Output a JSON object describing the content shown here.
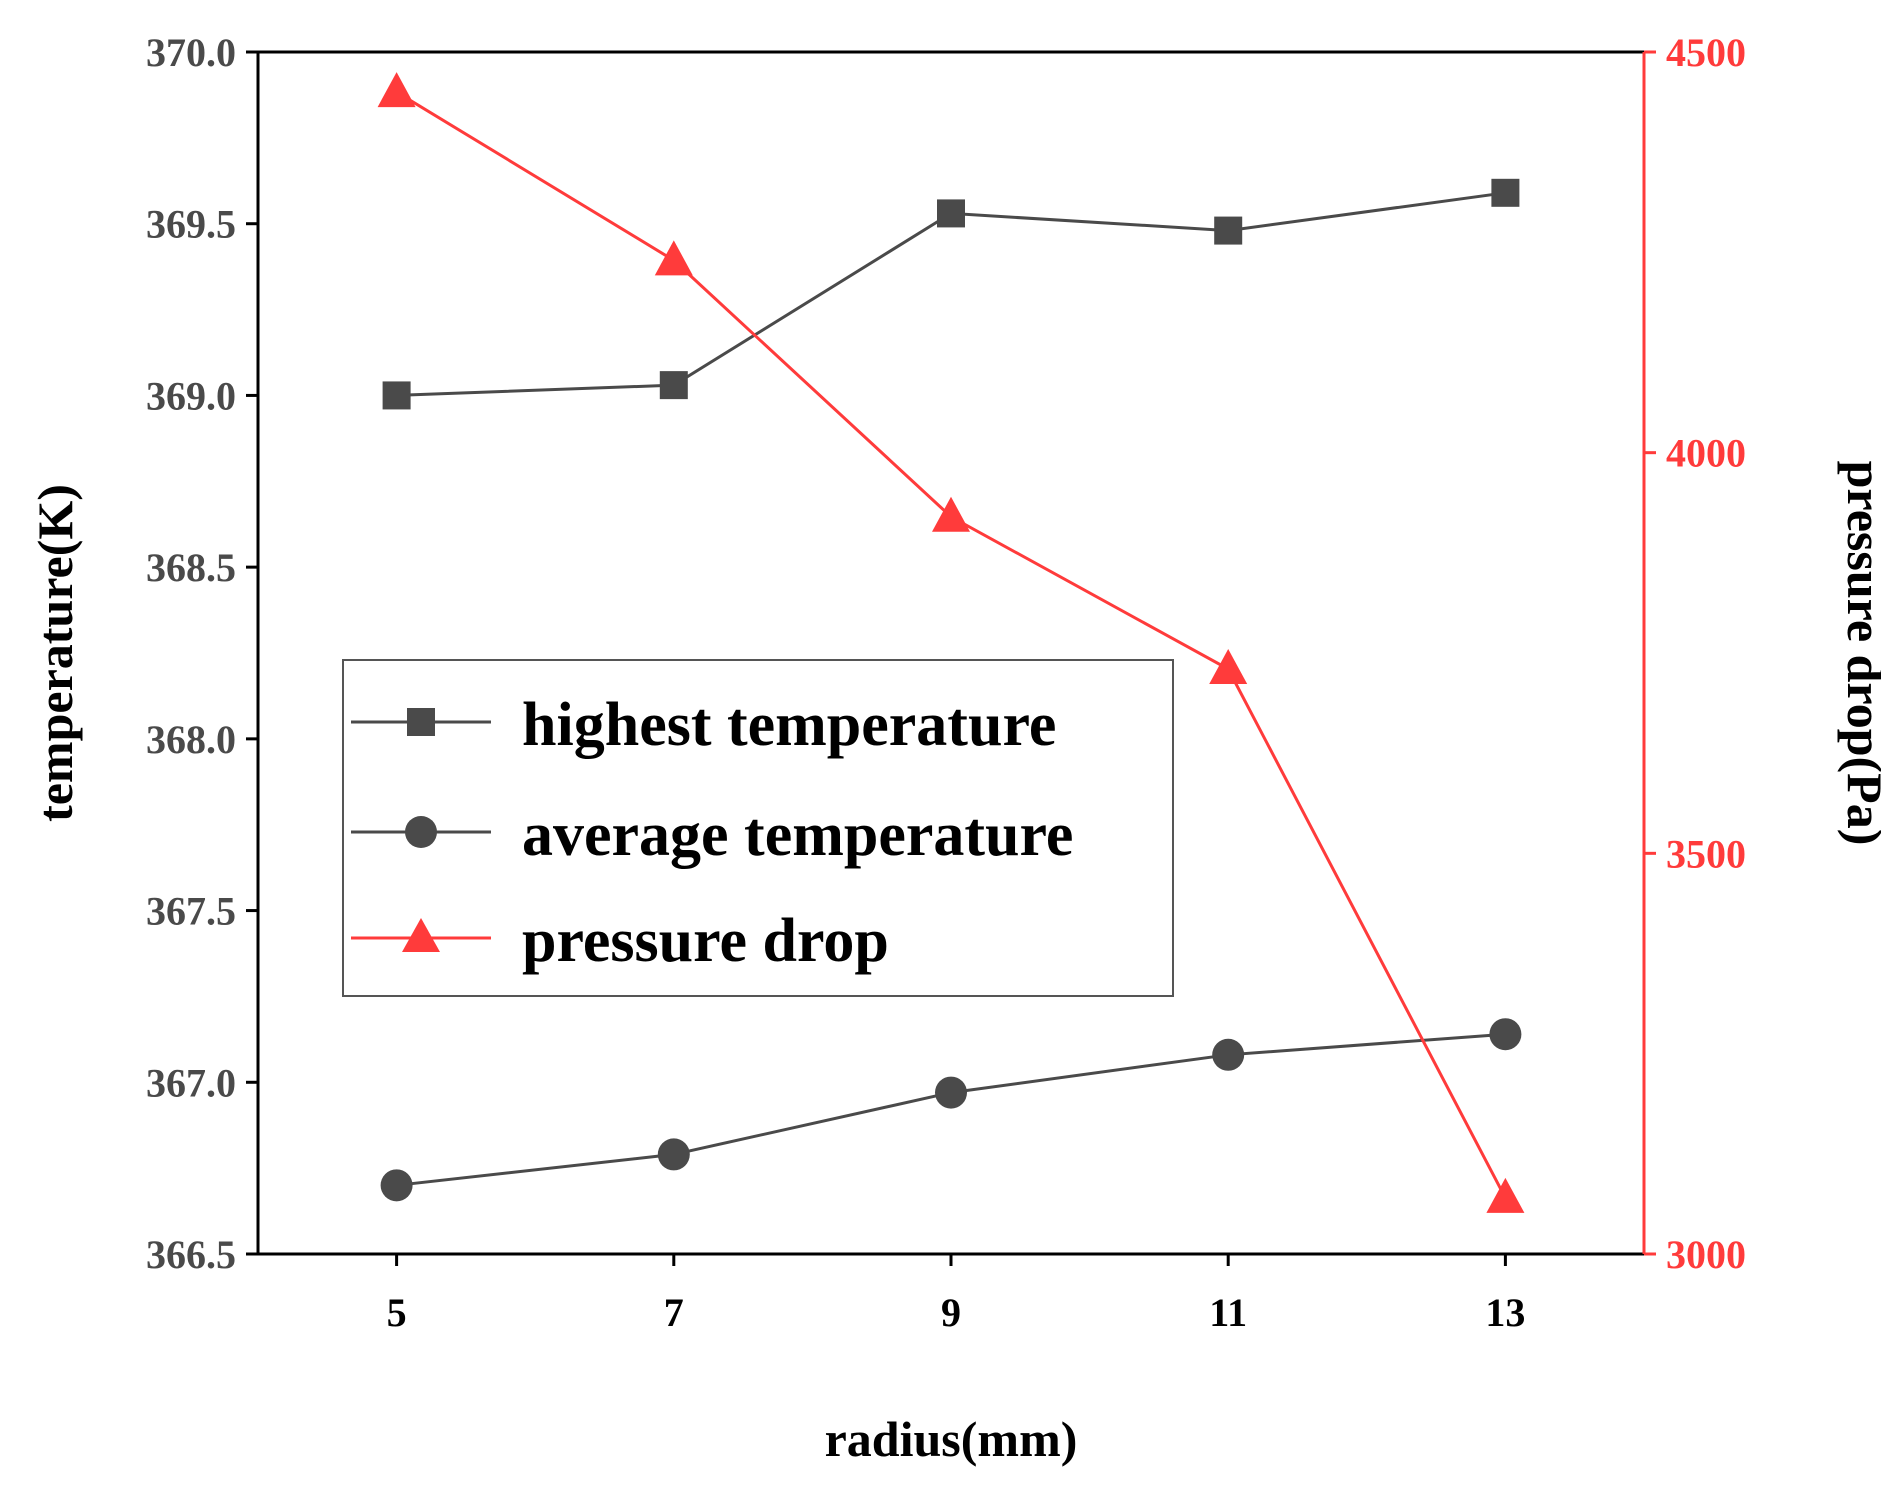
{
  "chart_data": {
    "type": "line",
    "xlabel": "radius(mm)",
    "ylabel_left": "temperature(K)",
    "ylabel_right": "pressure drop(Pa)",
    "x": [
      5,
      7,
      9,
      11,
      13
    ],
    "xlim": [
      4,
      14
    ],
    "x_ticks": [
      "5",
      "7",
      "9",
      "11",
      "13"
    ],
    "ylim_left": [
      366.5,
      370.0
    ],
    "y_ticks_left": [
      "366.5",
      "367.0",
      "367.5",
      "368.0",
      "368.5",
      "369.0",
      "369.5",
      "370.0"
    ],
    "ylim_right": [
      3000,
      4500
    ],
    "y_ticks_right": [
      "3000",
      "3500",
      "4000",
      "4500"
    ],
    "legend_position": "center-left",
    "colors": {
      "temperature": "#4a4a4a",
      "pressure": "#ff3b3b",
      "axis": "#000000"
    },
    "series": [
      {
        "name": "highest temperature",
        "axis": "left",
        "marker": "square",
        "values": [
          369.0,
          369.03,
          369.53,
          369.48,
          369.59
        ]
      },
      {
        "name": "average temperature",
        "axis": "left",
        "marker": "circle",
        "values": [
          366.7,
          366.79,
          366.97,
          367.08,
          367.14
        ]
      },
      {
        "name": "pressure drop",
        "axis": "right",
        "marker": "triangle",
        "values": [
          4450,
          4240,
          3920,
          3730,
          3070
        ]
      }
    ]
  }
}
